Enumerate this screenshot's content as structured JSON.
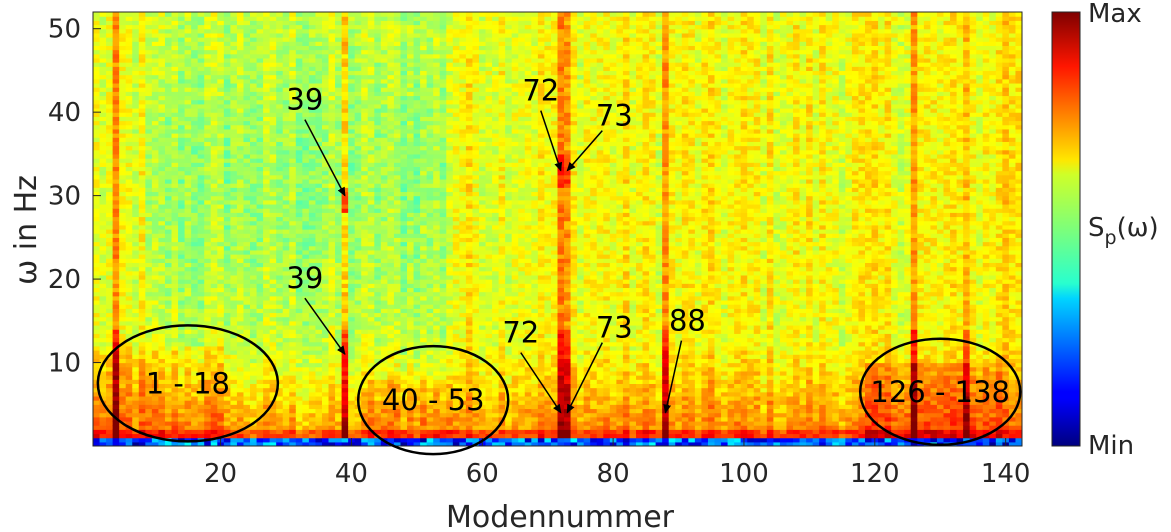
{
  "chart_data": {
    "type": "heatmap",
    "xlabel": "Modennummer",
    "ylabel": "ω in Hz",
    "xlim": [
      0.5,
      142.5
    ],
    "ylim": [
      0,
      52
    ],
    "x_ticks": [
      20,
      40,
      60,
      80,
      100,
      120,
      140
    ],
    "y_ticks": [
      10,
      20,
      30,
      40,
      50
    ],
    "colorbar": {
      "title_base": "S",
      "title_sub": "p",
      "title_tail": "(ω)",
      "max_label": "Max",
      "min_label": "Min",
      "colormap": "jet"
    },
    "highlight_modes": [
      4,
      39,
      72,
      73,
      88,
      126,
      134
    ],
    "annotations": [
      {
        "text": "39",
        "x": 39,
        "y": 30
      },
      {
        "text": "39",
        "x": 39,
        "y": 11
      },
      {
        "text": "72",
        "x": 72,
        "y": 33
      },
      {
        "text": "73",
        "x": 73,
        "y": 33
      },
      {
        "text": "72",
        "x": 72,
        "y": 4
      },
      {
        "text": "73",
        "x": 73,
        "y": 4
      },
      {
        "text": "88",
        "x": 88,
        "y": 4
      }
    ],
    "regions": [
      {
        "label": "1 - 18",
        "x_center": 15,
        "y_center": 7.5
      },
      {
        "label": "40 - 53",
        "x_center": 52.5,
        "y_center": 5.5
      },
      {
        "label": "126 - 138",
        "x_center": 130,
        "y_center": 6.5
      }
    ]
  }
}
